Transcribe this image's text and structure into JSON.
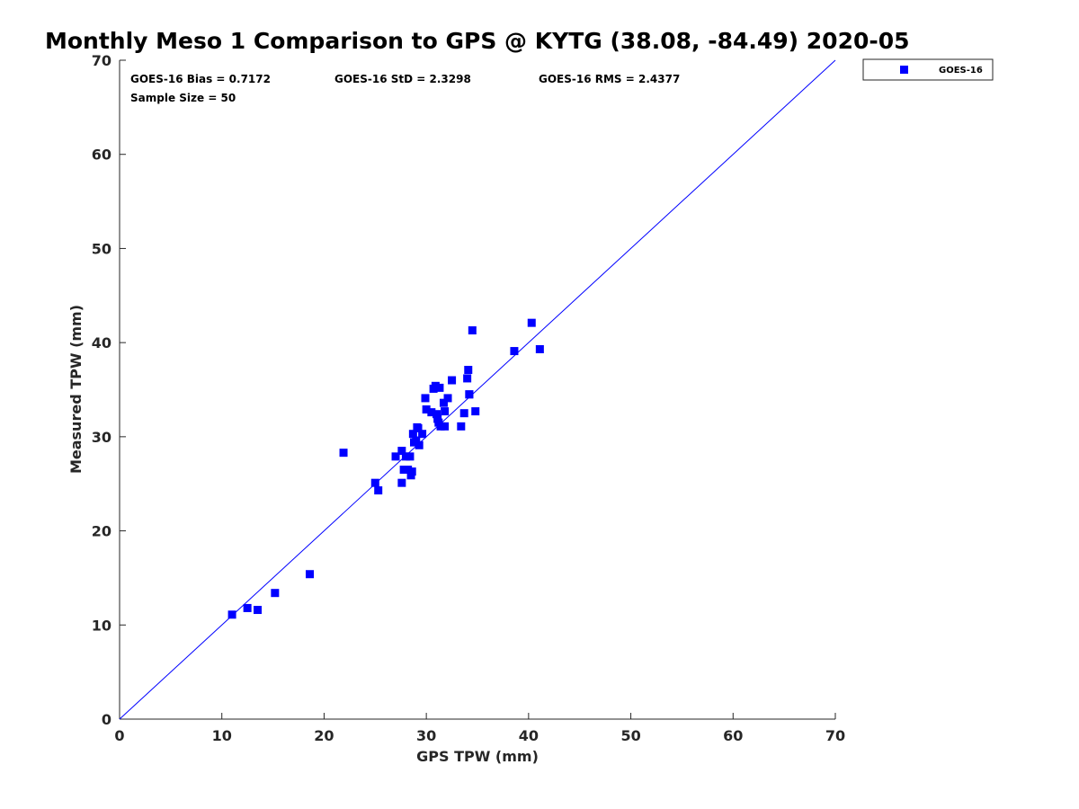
{
  "chart_data": {
    "type": "scatter",
    "title": "Monthly Meso 1 Comparison to GPS @ KYTG (38.08, -84.49) 2020-05",
    "xlabel": "GPS TPW (mm)",
    "ylabel": "Measured TPW (mm)",
    "xlim": [
      0,
      70
    ],
    "ylim": [
      0,
      70
    ],
    "xticks": [
      "0",
      "10",
      "20",
      "30",
      "40",
      "50",
      "60",
      "70"
    ],
    "yticks": [
      "0",
      "10",
      "20",
      "30",
      "40",
      "50",
      "60",
      "70"
    ],
    "grid": false,
    "legend_position": "outside-top-right",
    "stats": {
      "bias": "GOES-16 Bias = 0.7172",
      "std": "GOES-16 StD = 2.3298",
      "rms": "GOES-16 RMS = 2.4377",
      "sample_size": "Sample Size = 50"
    },
    "reference_line": {
      "x": [
        0,
        70
      ],
      "y": [
        0,
        70
      ],
      "color": "#0000ff"
    },
    "series": [
      {
        "name": "GOES-16",
        "color": "#0000ff",
        "marker": "square",
        "x": [
          11.0,
          12.5,
          13.5,
          15.2,
          18.6,
          21.9,
          25.0,
          25.3,
          27.0,
          27.6,
          27.6,
          27.8,
          28.0,
          28.2,
          28.4,
          28.5,
          28.6,
          28.7,
          28.8,
          29.1,
          29.2,
          29.3,
          29.6,
          29.9,
          30.0,
          30.5,
          30.7,
          30.9,
          31.0,
          31.1,
          31.2,
          31.3,
          31.4,
          31.7,
          31.8,
          31.8,
          32.1,
          32.5,
          33.4,
          33.7,
          34.0,
          34.1,
          34.2,
          34.2,
          34.5,
          34.8,
          38.6,
          40.3,
          41.1,
          29.0
        ],
        "y": [
          11.1,
          11.8,
          11.6,
          13.4,
          15.4,
          28.3,
          25.1,
          24.3,
          27.9,
          28.5,
          25.1,
          26.5,
          27.9,
          26.5,
          27.9,
          25.9,
          26.3,
          30.3,
          29.4,
          31.0,
          30.9,
          29.1,
          30.3,
          34.1,
          32.9,
          32.6,
          35.1,
          35.4,
          32.4,
          31.9,
          31.5,
          35.2,
          31.1,
          33.6,
          32.7,
          31.1,
          34.1,
          36.0,
          31.1,
          32.5,
          36.2,
          37.1,
          34.5,
          34.5,
          41.3,
          32.7,
          39.1,
          42.1,
          39.3,
          29.6
        ]
      }
    ]
  }
}
